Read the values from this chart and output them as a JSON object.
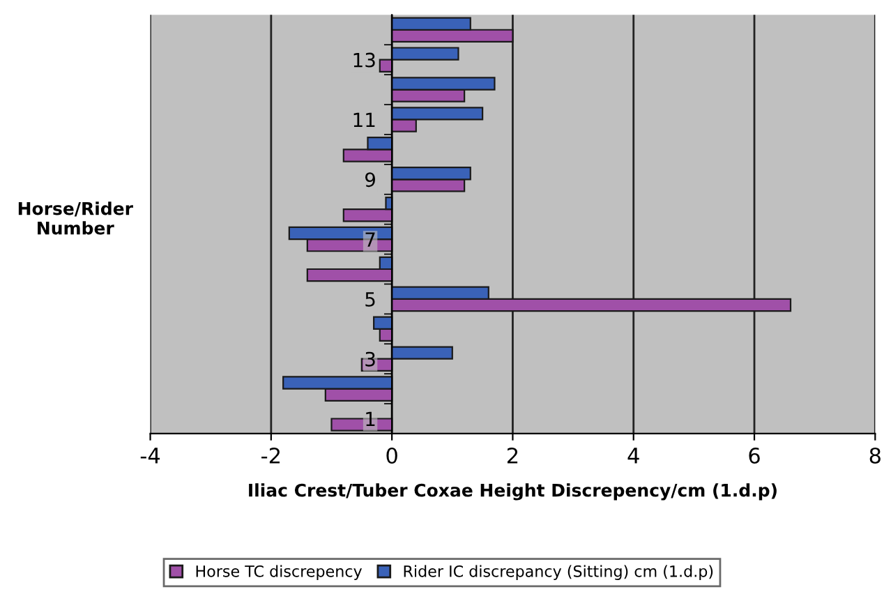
{
  "chart_data": {
    "type": "bar",
    "orientation": "horizontal",
    "xlabel": "Iliac Crest/Tuber Coxae Height Discrepency/cm (1.d.p)",
    "ylabel": "Horse/Rider\nNumber",
    "categories": [
      null,
      "13",
      null,
      "11",
      null,
      "9",
      null,
      "7",
      null,
      "5",
      null,
      "3",
      null,
      "1"
    ],
    "series": [
      {
        "name": "Horse TC discrepency",
        "color": "#a050a8",
        "values": [
          2.0,
          -0.2,
          1.2,
          0.4,
          -0.8,
          1.2,
          -0.8,
          -1.4,
          -1.4,
          6.6,
          -0.2,
          -0.5,
          -1.1,
          -1.0
        ]
      },
      {
        "name": "Rider IC discrepancy (Sitting) cm (1.d.p)",
        "color": "#3a62b8",
        "values": [
          1.3,
          1.1,
          1.7,
          1.5,
          -0.4,
          1.3,
          -0.1,
          -1.7,
          -0.2,
          1.6,
          -0.3,
          1.0,
          -1.8,
          null
        ]
      }
    ],
    "xlim": [
      -4,
      8
    ],
    "xticks": [
      -4,
      -2,
      0,
      2,
      4,
      6,
      8
    ],
    "grid": "x",
    "legend": "bottom"
  }
}
